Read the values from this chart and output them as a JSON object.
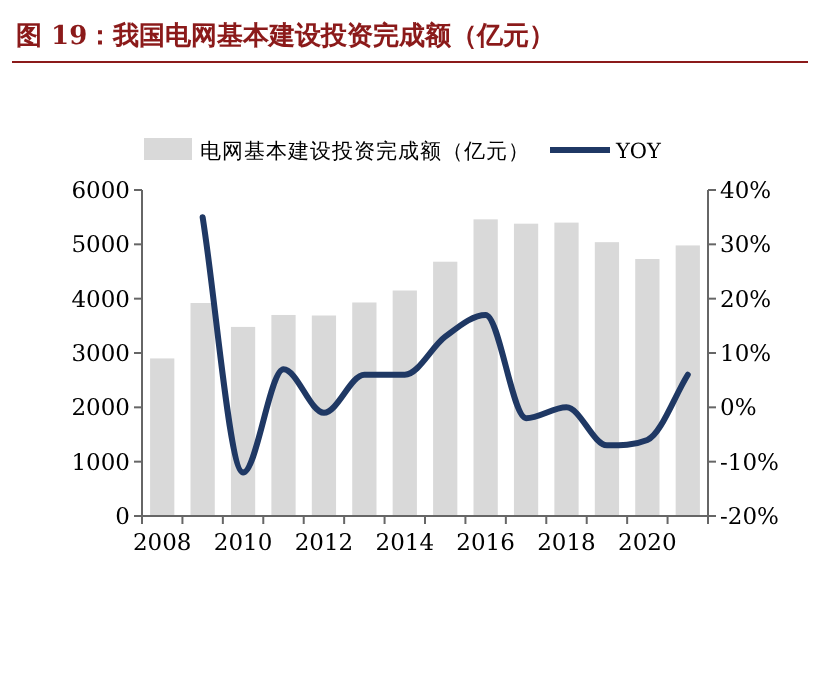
{
  "chart_data": {
    "type": "bar",
    "title": "图 19：我国电网基本建设投资完成额（亿元）",
    "categories": [
      "2008",
      null,
      "2010",
      null,
      "2012",
      null,
      "2014",
      null,
      "2016",
      null,
      "2018",
      null,
      "2020",
      null
    ],
    "series": [
      {
        "name": "电网基本建设投资完成额（亿元）",
        "color": "#d9d9d9",
        "values": [
          2900,
          3920,
          3480,
          3700,
          3690,
          3930,
          4150,
          4680,
          5460,
          5380,
          5400,
          5040,
          4730,
          4980
        ]
      },
      {
        "name": "YOY",
        "type": "line",
        "axis": "y2",
        "color": "#1f3864",
        "values": [
          null,
          35,
          -12,
          7,
          -1,
          6,
          6,
          13,
          17,
          -2,
          0,
          -7,
          -6,
          6
        ]
      }
    ],
    "ylim": [
      0,
      6000
    ],
    "yticks": [
      0,
      1000,
      2000,
      3000,
      4000,
      5000,
      6000
    ],
    "y2lim": [
      -20,
      40
    ],
    "y2ticks": [
      {
        "value": -20,
        "label": "-20%"
      },
      {
        "value": -10,
        "label": "-10%"
      },
      {
        "value": 0,
        "label": "0%"
      },
      {
        "value": 10,
        "label": "10%"
      },
      {
        "value": 20,
        "label": "20%"
      },
      {
        "value": 30,
        "label": "30%"
      },
      {
        "value": 40,
        "label": "40%"
      }
    ],
    "legend": "top"
  }
}
